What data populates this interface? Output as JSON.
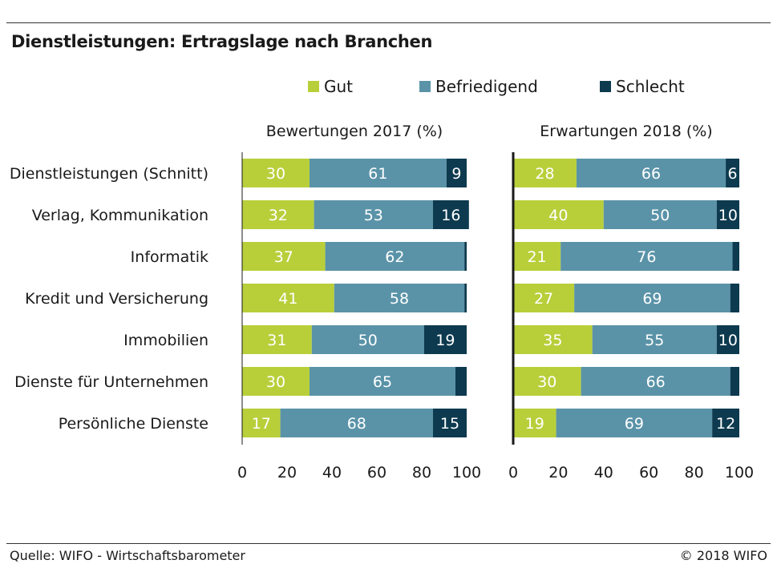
{
  "title": "Dienstleistungen: Ertragslage nach Branchen",
  "source": "Quelle: WIFO - Wirtschaftsbarometer",
  "copyright": "© 2018 WIFO",
  "legend": [
    {
      "label": "Gut",
      "color": "#b8cf3a"
    },
    {
      "label": "Befriedigend",
      "color": "#5a93a8"
    },
    {
      "label": "Schlecht",
      "color": "#0d3a4f"
    }
  ],
  "chart_data": [
    {
      "type": "bar",
      "orientation": "horizontal-stacked",
      "title": "Bewertungen 2017 (%)",
      "categories": [
        "Dienstleistungen (Schnitt)",
        "Verlag, Kommunikation",
        "Informatik",
        "Kredit und Versicherung",
        "Immobilien",
        "Dienste für Unternehmen",
        "Persönliche Dienste"
      ],
      "series": [
        {
          "name": "Gut",
          "values": [
            30,
            32,
            37,
            41,
            31,
            30,
            17
          ]
        },
        {
          "name": "Befriedigend",
          "values": [
            61,
            53,
            62,
            58,
            50,
            65,
            68
          ]
        },
        {
          "name": "Schlecht",
          "values": [
            9,
            16,
            1,
            1,
            19,
            5,
            15
          ]
        }
      ],
      "labels": {
        "Gut": [
          "30",
          "32",
          "37",
          "41",
          "31",
          "30",
          "17"
        ],
        "Befriedigend": [
          "61",
          "53",
          "62",
          "58",
          "50",
          "65",
          "68"
        ],
        "Schlecht": [
          "9",
          "16",
          "",
          "",
          "19",
          "",
          "15"
        ]
      },
      "xticks": [
        "0",
        "20",
        "40",
        "60",
        "80",
        "100"
      ],
      "xlim": [
        0,
        100
      ],
      "legend": "top"
    },
    {
      "type": "bar",
      "orientation": "horizontal-stacked",
      "title": "Erwartungen 2018 (%)",
      "categories": [
        "Dienstleistungen (Schnitt)",
        "Verlag, Kommunikation",
        "Informatik",
        "Kredit und Versicherung",
        "Immobilien",
        "Dienste für Unternehmen",
        "Persönliche Dienste"
      ],
      "series": [
        {
          "name": "Gut",
          "values": [
            28,
            40,
            21,
            27,
            35,
            30,
            19
          ]
        },
        {
          "name": "Befriedigend",
          "values": [
            66,
            50,
            76,
            69,
            55,
            66,
            69
          ]
        },
        {
          "name": "Schlecht",
          "values": [
            6,
            10,
            3,
            4,
            10,
            4,
            12
          ]
        }
      ],
      "labels": {
        "Gut": [
          "28",
          "40",
          "21",
          "27",
          "35",
          "30",
          "19"
        ],
        "Befriedigend": [
          "66",
          "50",
          "76",
          "69",
          "55",
          "66",
          "69"
        ],
        "Schlecht": [
          "6",
          "10",
          "",
          "",
          "10",
          "",
          "12"
        ]
      },
      "xticks": [
        "0",
        "20",
        "40",
        "60",
        "80",
        "100"
      ],
      "xlim": [
        0,
        100
      ],
      "legend": "top"
    }
  ]
}
